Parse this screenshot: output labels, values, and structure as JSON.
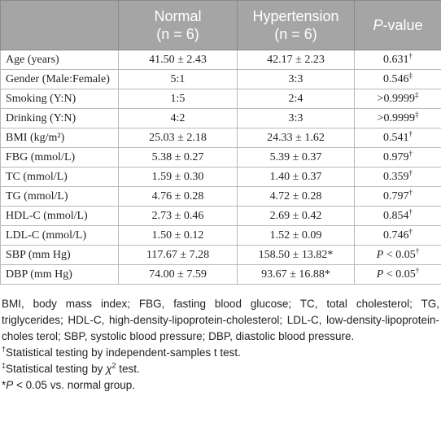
{
  "header": {
    "col0": "",
    "normal": {
      "name": "Normal",
      "n": "(n = 6)"
    },
    "hypertension": {
      "name": "Hypertension",
      "n": "(n = 6)"
    },
    "pvalue": {
      "italic": "P",
      "text": "-value"
    }
  },
  "table": {
    "rows": [
      [
        "Age (years)",
        "41.50 ± 2.43",
        "42.17 ± 2.23",
        {
          "t": "0.631",
          "sup": "†"
        }
      ],
      [
        "Gender (Male:Female)",
        "5:1",
        "3:3",
        {
          "t": "0.546",
          "sup": "‡"
        }
      ],
      [
        "Smoking (Y:N)",
        "1:5",
        "2:4",
        {
          "t": ">0.9999",
          "sup": "‡"
        }
      ],
      [
        "Drinking (Y:N)",
        "4:2",
        "3:3",
        {
          "t": ">0.9999",
          "sup": "‡"
        }
      ],
      [
        "BMI (kg/m²)",
        "25.03 ± 2.18",
        "24.33 ± 1.62",
        {
          "t": "0.541",
          "sup": "†"
        }
      ],
      [
        "FBG (mmol/L)",
        "5.38 ± 0.27",
        "5.39 ± 0.37",
        {
          "t": "0.979",
          "sup": "†"
        }
      ],
      [
        "TC (mmol/L)",
        "1.59 ± 0.30",
        "1.40 ± 0.37",
        {
          "t": "0.359",
          "sup": "†"
        }
      ],
      [
        "TG (mmol/L)",
        "4.76 ± 0.28",
        "4.72 ± 0.28",
        {
          "t": "0.797",
          "sup": "†"
        }
      ],
      [
        "HDL-C (mmol/L)",
        "2.73 ± 0.46",
        "2.69 ± 0.42",
        {
          "t": "0.854",
          "sup": "†"
        }
      ],
      [
        "LDL-C (mmol/L)",
        "1.50 ± 0.12",
        "1.52 ± 0.09",
        {
          "t": "0.746",
          "sup": "†"
        }
      ],
      [
        "SBP (mm Hg)",
        "117.67 ± 7.28",
        "158.50 ± 13.82*",
        {
          "i": "P",
          "t": " < 0.05",
          "sup": "†"
        }
      ],
      [
        "DBP (mm Hg)",
        "74.00 ± 7.59",
        "93.67 ± 16.88*",
        {
          "i": "P",
          "t": " < 0.05",
          "sup": "†"
        }
      ]
    ]
  },
  "footnotes": {
    "abbreviations": "BMI, body mass index; FBG, fasting blood glucose; TC, total cholesterol; TG, triglycerides; HDL-C, high-density-lipoprotein-cholesterol; LDL-C, low-density-lipoprotein-choles terol; SBP, systolic blood pressure; DBP, diastolic blood pressure.",
    "dagger": {
      "sym": "†",
      "text": "Statistical testing by independent-samples t test."
    },
    "ddagger": {
      "sym": "‡",
      "text": "Statistical testing by ",
      "math": "χ",
      "sup": "2",
      "tail": " test."
    },
    "star": {
      "sym": "*",
      "italic": "P",
      "text": " < 0.05 vs. normal group."
    }
  }
}
